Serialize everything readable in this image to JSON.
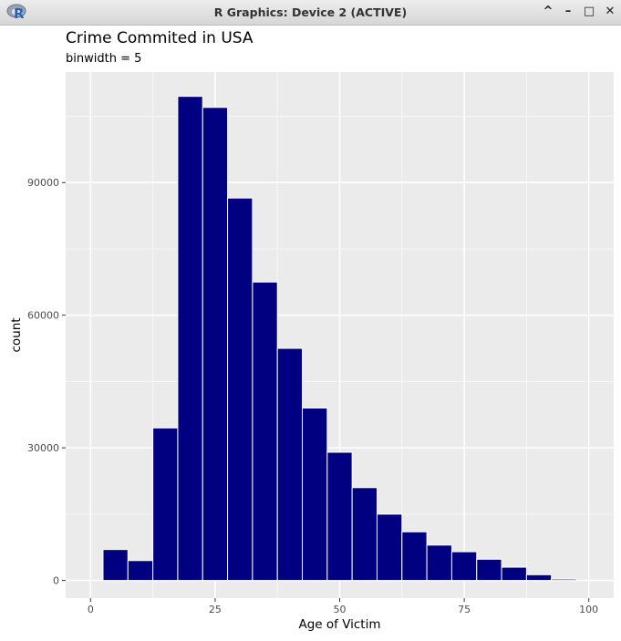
{
  "window": {
    "title": "R Graphics: Device 2 (ACTIVE)",
    "app_icon_letter": "R",
    "buttons": {
      "maximize_up": "^",
      "minimize": "–",
      "restore": "□",
      "close": "✕"
    }
  },
  "chart_data": {
    "type": "bar",
    "title": "Crime Commited in USA",
    "subtitle": "binwidth = 5",
    "xlabel": "Age of Victim",
    "ylabel": "count",
    "xlim": [
      -5,
      105
    ],
    "ylim": [
      -4000,
      115000
    ],
    "x_ticks": [
      0,
      25,
      50,
      75,
      100
    ],
    "x_tick_labels": [
      "0",
      "25",
      "50",
      "75",
      "100"
    ],
    "y_ticks": [
      0,
      30000,
      60000,
      90000
    ],
    "y_tick_labels": [
      "0",
      "30000",
      "60000",
      "90000"
    ],
    "grid": true,
    "bar_color": "#000080",
    "bar_edge_color": "#ffffff",
    "panel_color": "#ebebeb",
    "bins": [
      {
        "x0": 2.5,
        "x1": 7.5,
        "count": 7000
      },
      {
        "x0": 7.5,
        "x1": 12.5,
        "count": 4500
      },
      {
        "x0": 12.5,
        "x1": 17.5,
        "count": 34500
      },
      {
        "x0": 17.5,
        "x1": 22.5,
        "count": 109500
      },
      {
        "x0": 22.5,
        "x1": 27.5,
        "count": 107000
      },
      {
        "x0": 27.5,
        "x1": 32.5,
        "count": 86500
      },
      {
        "x0": 32.5,
        "x1": 37.5,
        "count": 67500
      },
      {
        "x0": 37.5,
        "x1": 42.5,
        "count": 52500
      },
      {
        "x0": 42.5,
        "x1": 47.5,
        "count": 39000
      },
      {
        "x0": 47.5,
        "x1": 52.5,
        "count": 29000
      },
      {
        "x0": 52.5,
        "x1": 57.5,
        "count": 21000
      },
      {
        "x0": 57.5,
        "x1": 62.5,
        "count": 15000
      },
      {
        "x0": 62.5,
        "x1": 67.5,
        "count": 11000
      },
      {
        "x0": 67.5,
        "x1": 72.5,
        "count": 8000
      },
      {
        "x0": 72.5,
        "x1": 77.5,
        "count": 6500
      },
      {
        "x0": 77.5,
        "x1": 82.5,
        "count": 4800
      },
      {
        "x0": 82.5,
        "x1": 87.5,
        "count": 3000
      },
      {
        "x0": 87.5,
        "x1": 92.5,
        "count": 1300
      },
      {
        "x0": 92.5,
        "x1": 97.5,
        "count": 300
      }
    ]
  }
}
